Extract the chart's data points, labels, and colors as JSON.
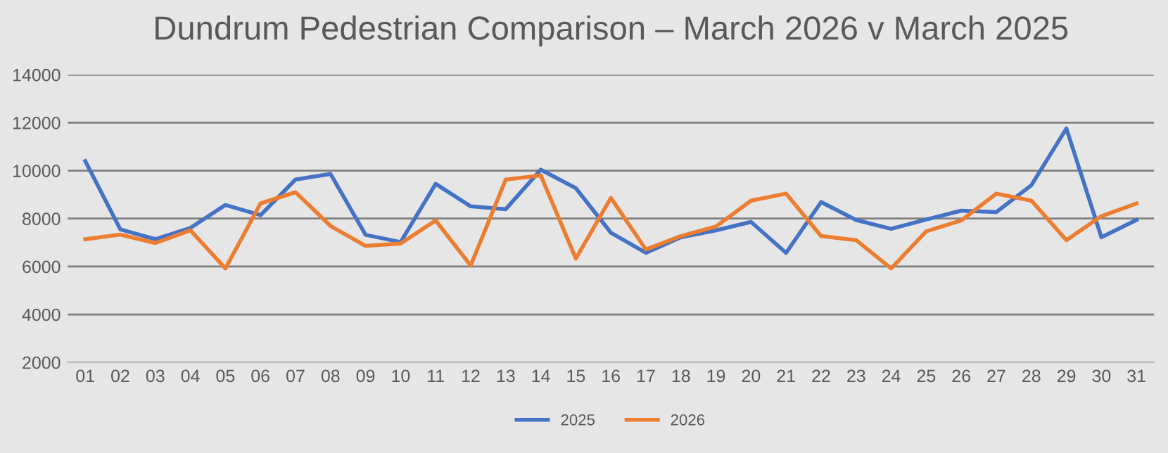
{
  "chart_data": {
    "type": "line",
    "title": "Dundrum Pedestrian Comparison – March 2026 v March 2025",
    "categories": [
      "01",
      "02",
      "03",
      "04",
      "05",
      "06",
      "07",
      "08",
      "09",
      "10",
      "11",
      "12",
      "13",
      "14",
      "15",
      "16",
      "17",
      "18",
      "19",
      "20",
      "21",
      "22",
      "23",
      "24",
      "25",
      "26",
      "27",
      "28",
      "29",
      "30",
      "31"
    ],
    "series": [
      {
        "name": "2025",
        "color": "#4472c4",
        "values": [
          10400,
          7550,
          7140,
          7610,
          8570,
          8140,
          9630,
          9860,
          7320,
          7020,
          9450,
          8510,
          8390,
          10040,
          9270,
          7410,
          6570,
          7220,
          7510,
          7860,
          6570,
          8690,
          7940,
          7570,
          7960,
          8330,
          8270,
          9390,
          11760,
          7220,
          7940
        ]
      },
      {
        "name": "2026",
        "color": "#ed7d31",
        "values": [
          7140,
          7330,
          6980,
          7510,
          5920,
          8630,
          9100,
          7690,
          6860,
          6960,
          7920,
          6040,
          9630,
          9800,
          6330,
          8860,
          6710,
          7270,
          7670,
          8750,
          9040,
          7270,
          7100,
          5920,
          7470,
          7920,
          9040,
          8750,
          7100,
          8100,
          8630
        ]
      }
    ],
    "ylim": [
      2000,
      14000
    ],
    "yticks": [
      2000,
      4000,
      6000,
      8000,
      10000,
      12000,
      14000
    ],
    "grid": "y",
    "legend": "bottom",
    "marker": "none",
    "line_style": "solid"
  }
}
